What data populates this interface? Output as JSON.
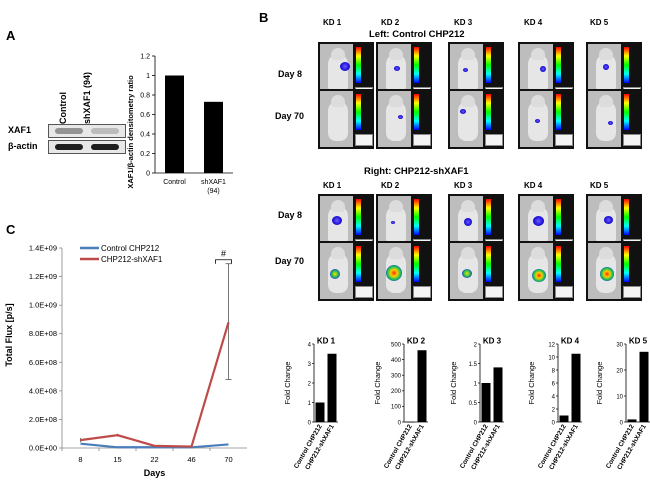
{
  "panel_labels": {
    "a": "A",
    "b": "B",
    "c": "C"
  },
  "panel_a": {
    "blot_header": {
      "control": "Control",
      "sh": "shXAF1 (94)"
    },
    "blot_rows": [
      {
        "label": "XAF1",
        "control_intensity": 0.35,
        "sh_intensity": 0.12
      },
      {
        "label": "β-actin",
        "control_intensity": 1.0,
        "sh_intensity": 1.0
      }
    ]
  },
  "panel_b": {
    "left_title": "Left: Control CHP212",
    "right_title": "Right: CHP212-shXAF1",
    "kd_labels": [
      "KD 1",
      "KD 2",
      "KD 3",
      "KD 4",
      "KD 5"
    ],
    "day_labels": [
      "Day 8",
      "Day 70"
    ]
  },
  "chart_data": [
    {
      "type": "bar",
      "panel": "A",
      "categories": [
        "Control",
        "shXAF1 (94)"
      ],
      "values": [
        1.0,
        0.73
      ],
      "ylabel": "XAF1/β-actin densitometry ratio",
      "ylim": [
        0,
        1.2
      ],
      "yticks": [
        "0",
        "0.2",
        "0.4",
        "0.6",
        "0.8",
        "1",
        "1.2"
      ],
      "cat_line1": [
        "Control",
        "shXAF1"
      ],
      "cat_line2": [
        "",
        "(94)"
      ]
    },
    {
      "type": "line",
      "panel": "C",
      "x": [
        "8",
        "15",
        "22",
        "46",
        "70"
      ],
      "ylabel": "Total Flux [p/s]",
      "xlabel": "Days",
      "ylim": [
        0,
        1400000000
      ],
      "yticks": [
        "0.0E+00",
        "2.0E+08",
        "4.0E+08",
        "6.0E+08",
        "8.0E+08",
        "1.0E+09",
        "1.2E+09",
        "1.4E+09"
      ],
      "series": [
        {
          "name": "Control CHP212",
          "color": "#4a7ebb",
          "values": [
            30000000,
            5000000,
            5000000,
            5000000,
            25000000
          ]
        },
        {
          "name": "CHP212-shXAF1",
          "color": "#be4b48",
          "values": [
            55000000,
            90000000,
            15000000,
            10000000,
            880000000
          ]
        }
      ],
      "error_bar": {
        "x": "70",
        "low": 480000000,
        "high": 1290000000
      },
      "annotation": "#"
    },
    {
      "type": "bar",
      "panel": "B",
      "title": "KD 1",
      "categories": [
        "Control CHP212",
        "CHP212-shXAF1"
      ],
      "values": [
        1,
        3.5
      ],
      "ylabel": "Fold Change",
      "ylim": [
        0,
        4
      ],
      "yticks": [
        "0",
        "1",
        "2",
        "3",
        "4"
      ]
    },
    {
      "type": "bar",
      "panel": "B",
      "title": "KD 2",
      "categories": [
        "Control CHP212",
        "CHP212-shXAF1"
      ],
      "values": [
        1,
        460
      ],
      "ylabel": "Fold Change",
      "ylim": [
        0,
        500
      ],
      "yticks": [
        "0",
        "100",
        "200",
        "300",
        "400",
        "500"
      ]
    },
    {
      "type": "bar",
      "panel": "B",
      "title": "KD 3",
      "categories": [
        "Control CHP212",
        "CHP212-shXAF1"
      ],
      "values": [
        1,
        1.4
      ],
      "ylabel": "Fold Change",
      "ylim": [
        0,
        2
      ],
      "yticks": [
        "0",
        "0.5",
        "1",
        "1.5",
        "2"
      ]
    },
    {
      "type": "bar",
      "panel": "B",
      "title": "KD 4",
      "categories": [
        "Control CHP212",
        "CHP212-shXAF1"
      ],
      "values": [
        1,
        10.5
      ],
      "ylabel": "Fold Change",
      "ylim": [
        0,
        12
      ],
      "yticks": [
        "0",
        "2",
        "4",
        "6",
        "8",
        "10",
        "12"
      ]
    },
    {
      "type": "bar",
      "panel": "B",
      "title": "KD 5",
      "categories": [
        "Control CHP212",
        "CHP212-shXAF1"
      ],
      "values": [
        1,
        27
      ],
      "ylabel": "Fold Change",
      "ylim": [
        0,
        30
      ],
      "yticks": [
        "0",
        "10",
        "20",
        "30"
      ]
    }
  ]
}
